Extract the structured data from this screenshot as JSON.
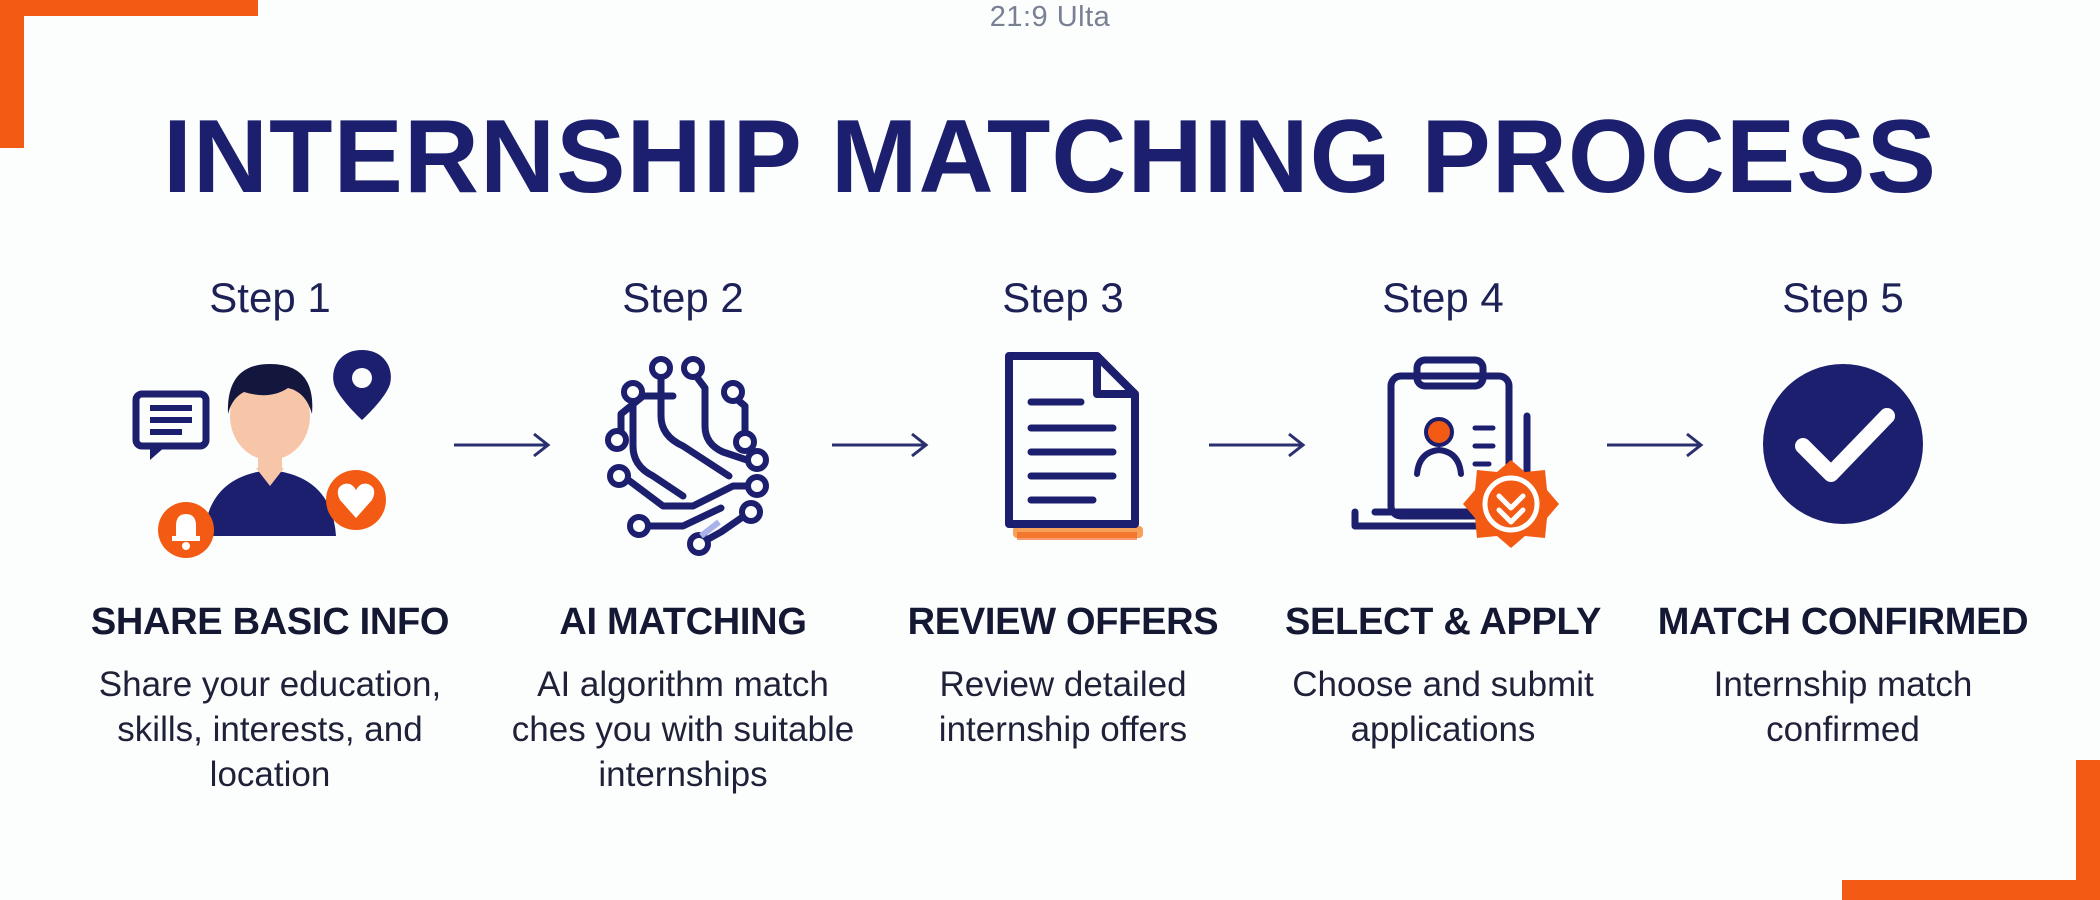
{
  "ratio_label": "21:9 Ulta",
  "title": "INTERNSHIP MATCHING PROCESS",
  "colors": {
    "navy": "#1b1f6e",
    "orange": "#f35b14",
    "background": "#fcfdfd"
  },
  "steps": [
    {
      "number": "Step 1",
      "icon": "person-with-info-icons",
      "title": "SHARE BASIC INFO",
      "description": "Share your education, skills, interests, and location"
    },
    {
      "number": "Step 2",
      "icon": "ai-circuit-icon",
      "title": "AI MATCHING",
      "description": "AI algorithm match ches you with suitable internships"
    },
    {
      "number": "Step 3",
      "icon": "document-icon",
      "title": "REVIEW OFFERS",
      "description": "Review detailed internship offers"
    },
    {
      "number": "Step 4",
      "icon": "clipboard-application-icon",
      "title": "SELECT & APPLY",
      "description": "Choose and submit applications"
    },
    {
      "number": "Step 5",
      "icon": "check-circle-icon",
      "title": "MATCH CONFIRMED",
      "description": "Internship match confirmed"
    }
  ]
}
